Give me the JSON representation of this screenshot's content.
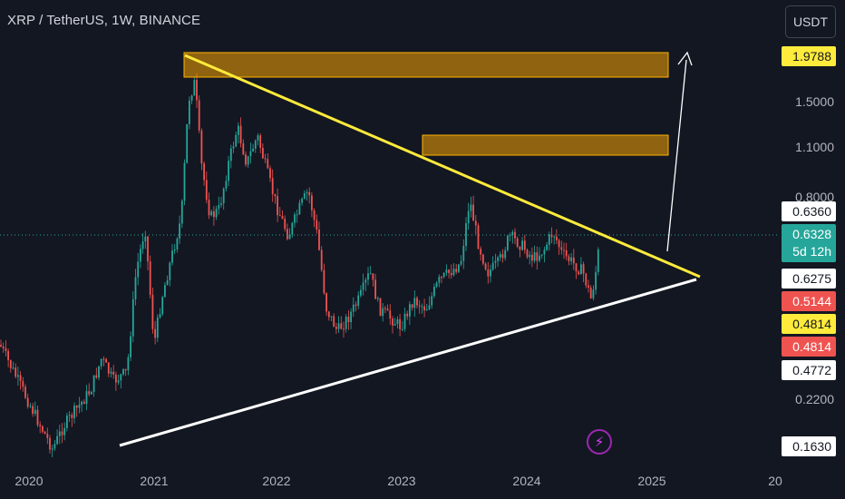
{
  "header": {
    "title": "XRP / TetherUS, 1W, BINANCE",
    "currency": "USDT"
  },
  "colors": {
    "background": "#131722",
    "up": "#26a69a",
    "down": "#ef5350",
    "trendline_upper": "#ffeb3b",
    "trendline_lower": "#ffffff",
    "zone_fill": "#f5a200",
    "zone_border": "#ffb300",
    "arrow": "#ffffff"
  },
  "icons": {
    "flash": "lightning-icon"
  },
  "chart_data": {
    "type": "candlestick",
    "symbol": "XRP / TetherUS",
    "timeframe": "1W",
    "exchange": "BINANCE",
    "x_ticks": [
      "2020",
      "2021",
      "2022",
      "2023",
      "2024",
      "2025",
      "20"
    ],
    "y_ticks": [
      "1.5000",
      "1.1000",
      "0.8000",
      "0.2200"
    ],
    "price_tags": [
      {
        "label": "1.9788",
        "style": "yellow"
      },
      {
        "label": "0.6360",
        "style": "white"
      },
      {
        "label": "0.6328",
        "countdown": "5d 12h",
        "style": "green"
      },
      {
        "label": "0.6275",
        "style": "white"
      },
      {
        "label": "0.5144",
        "style": "red"
      },
      {
        "label": "0.4814",
        "style": "yellow"
      },
      {
        "label": "0.4814",
        "style": "red"
      },
      {
        "label": "0.4772",
        "style": "white"
      },
      {
        "label": "0.1630",
        "style": "white"
      }
    ],
    "last_price": 0.6328,
    "annotations": [
      {
        "type": "zone",
        "name": "upper-resistance-zone"
      },
      {
        "type": "zone",
        "name": "lower-resistance-zone"
      },
      {
        "type": "trendline",
        "name": "descending-resistance"
      },
      {
        "type": "trendline",
        "name": "ascending-support"
      },
      {
        "type": "arrow",
        "name": "projection-arrow"
      }
    ],
    "grid": false
  }
}
